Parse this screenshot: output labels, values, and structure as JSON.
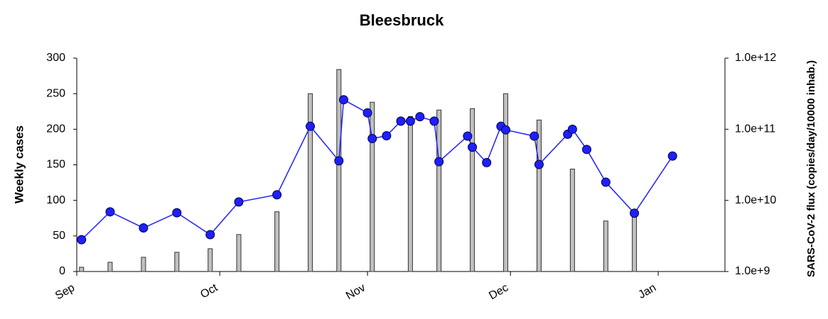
{
  "chart_data": {
    "type": "combo",
    "title": "Bleesbruck",
    "y_label": "Weekly cases",
    "y2_label": "SARS-CoV-2 flux  (copies/day/10000 inhab.)",
    "xlim": [
      0,
      136
    ],
    "xticks": [
      {
        "value": 0,
        "label": "Sep"
      },
      {
        "value": 30,
        "label": "Oct"
      },
      {
        "value": 61,
        "label": "Nov"
      },
      {
        "value": 91,
        "label": "Dec"
      },
      {
        "value": 122,
        "label": "Jan"
      }
    ],
    "ylim": [
      0,
      300
    ],
    "yticks": [
      0,
      50,
      100,
      150,
      200,
      250,
      300
    ],
    "y2lim": [
      1000000000,
      1000000000000
    ],
    "y2ticks": [
      {
        "value": 1000000000,
        "label": "1.0e+9"
      },
      {
        "value": 10000000000,
        "label": "1.0e+10"
      },
      {
        "value": 100000000000,
        "label": "1.0e+11"
      },
      {
        "value": 1000000000000,
        "label": "1.0e+12"
      }
    ],
    "y2_log": true,
    "series": [
      {
        "type": "bar",
        "color": "#c0c0c0",
        "x": [
          1,
          7,
          14,
          21,
          28,
          34,
          42,
          49,
          55,
          62,
          70,
          76,
          83,
          90,
          97,
          104,
          111,
          117
        ],
        "values": [
          6,
          13,
          20,
          27,
          32,
          52,
          84,
          250,
          284,
          238,
          218,
          227,
          229,
          250,
          213,
          144,
          71,
          85
        ]
      },
      {
        "type": "line",
        "axis": "y2",
        "color": "#1f1fff",
        "x": [
          1,
          7,
          14,
          21,
          28,
          34,
          42,
          49,
          55,
          56,
          61,
          62,
          65,
          68,
          70,
          72,
          75,
          76,
          82,
          83,
          86,
          89,
          90,
          96,
          97,
          103,
          104,
          107,
          111,
          117,
          125
        ],
        "values": [
          2800000000,
          6900000000,
          4100000000,
          6700000000,
          3300000000,
          9500000000,
          12000000000,
          110000000000,
          36000000000,
          260000000000,
          170000000000,
          74000000000,
          81000000000,
          130000000000,
          130000000000,
          150000000000,
          130000000000,
          35000000000,
          80000000000,
          56000000000,
          34000000000,
          110000000000,
          98000000000,
          80000000000,
          32000000000,
          85000000000,
          100000000000,
          52000000000,
          18000000000,
          6600000000,
          42000000000
        ]
      }
    ]
  }
}
